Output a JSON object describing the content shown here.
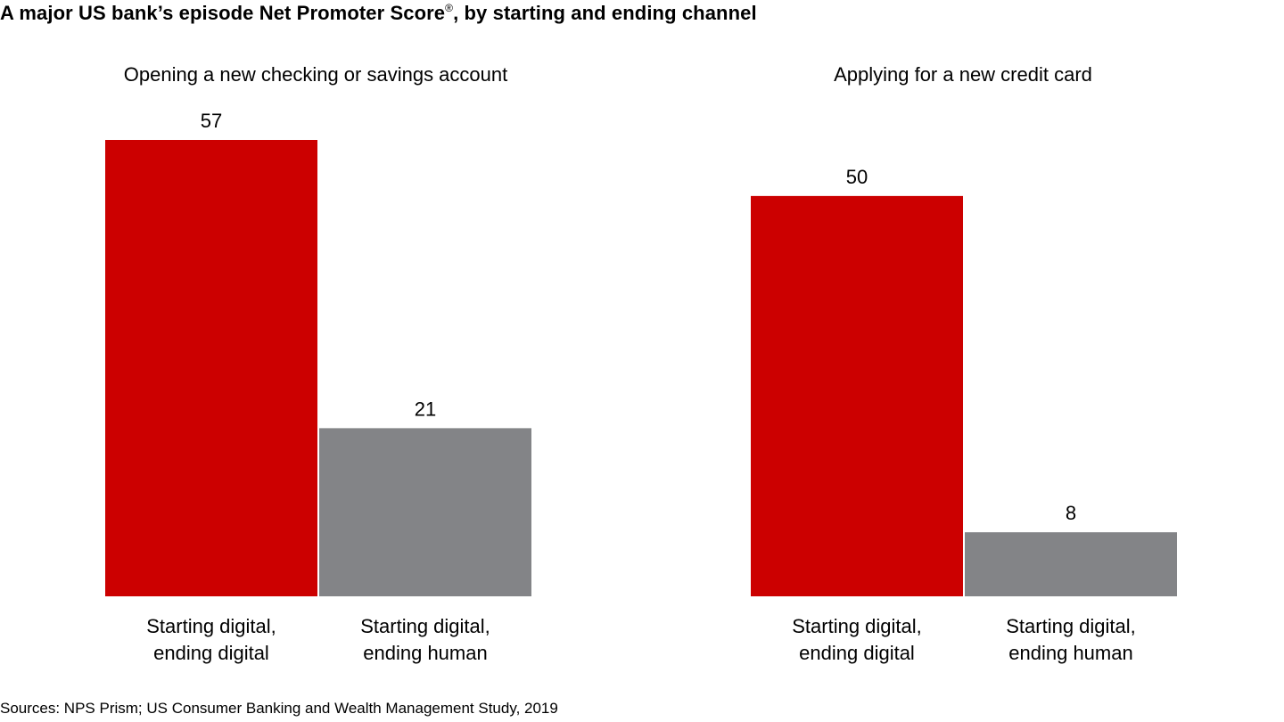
{
  "title": {
    "main": "A major US bank’s episode Net Promoter Score",
    "mark": "®",
    "tail": ", by starting and ending channel"
  },
  "source": "Sources: NPS Prism; US Consumer Banking and Wealth Management Study, 2019",
  "colors": {
    "digital": "#cc0000",
    "human": "#838487"
  },
  "chart_data": [
    {
      "type": "bar",
      "title": "Opening a new checking or savings account",
      "categories": [
        [
          "Starting digital,",
          "ending digital"
        ],
        [
          "Starting digital,",
          "ending human"
        ]
      ],
      "values": [
        57,
        21
      ],
      "bar_colors": [
        "#cc0000",
        "#838487"
      ],
      "ylim": [
        0,
        57
      ],
      "grid": false,
      "legend": "none"
    },
    {
      "type": "bar",
      "title": "Applying for a new credit card",
      "categories": [
        [
          "Starting digital,",
          "ending digital"
        ],
        [
          "Starting digital,",
          "ending human"
        ]
      ],
      "values": [
        50,
        8
      ],
      "bar_colors": [
        "#cc0000",
        "#838487"
      ],
      "ylim": [
        0,
        57
      ],
      "grid": false,
      "legend": "none"
    }
  ]
}
